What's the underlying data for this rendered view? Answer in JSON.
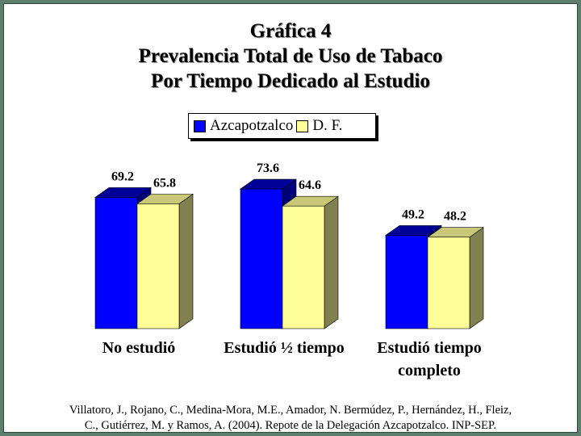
{
  "chart_data": {
    "type": "bar",
    "title": [
      "Gráfica 4",
      "Prevalencia Total de Uso de Tabaco",
      "Por Tiempo Dedicado al Estudio"
    ],
    "categories": [
      [
        "No estudió"
      ],
      [
        "Estudió ½ tiempo"
      ],
      [
        "Estudió tiempo",
        "completo"
      ]
    ],
    "series": [
      {
        "name": "Azcapotzalco",
        "values": [
          69.2,
          73.6,
          49.2
        ],
        "color": "#0000ff",
        "top_color": "#000099",
        "side_color": "#00007a"
      },
      {
        "name": "D. F.",
        "values": [
          65.8,
          64.6,
          48.2
        ],
        "color": "#ffff99",
        "top_color": "#c8c878",
        "side_color": "#808050"
      }
    ],
    "ylim": [
      0,
      100
    ],
    "grid": false,
    "legend_position": "top-center",
    "bar_style": "3d"
  },
  "source": [
    "Villatoro, J., Rojano, C., Medina-Mora, M.E., Amador, N. Bermúdez, P., Hernández, H., Fleiz,",
    "C., Gutiérrez, M. y Ramos, A. (2004). Repote de la Delegación Azcapotzalco. INP-SEP."
  ],
  "colors": {
    "background": "#5e7f6b",
    "panel": "#ffffff"
  }
}
